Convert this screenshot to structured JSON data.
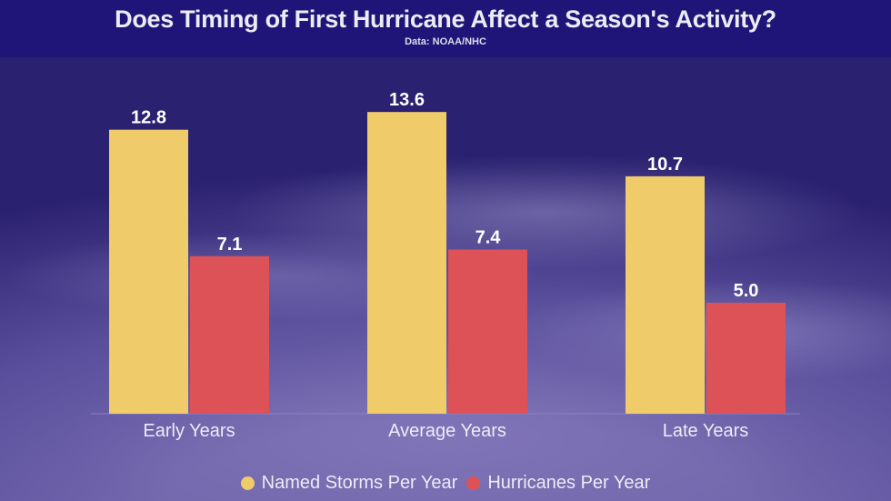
{
  "chart_data": {
    "type": "bar",
    "title": "Does Timing of First Hurricane Affect a Season's Activity?",
    "subtitle": "Data: NOAA/NHC",
    "xlabel": "",
    "ylabel": "",
    "categories": [
      "Early Years",
      "Average Years",
      "Late Years"
    ],
    "series": [
      {
        "name": "Named Storms Per Year",
        "color": "#f0cb6a",
        "values": [
          12.8,
          13.6,
          10.7
        ],
        "labels": [
          "12.8",
          "13.6",
          "10.7"
        ]
      },
      {
        "name": "Hurricanes Per Year",
        "color": "#dd5257",
        "values": [
          7.1,
          7.4,
          5.0
        ],
        "labels": [
          "7.1",
          "7.4",
          "5.0"
        ]
      }
    ],
    "ylim": [
      0,
      14
    ],
    "grid": false,
    "legend_position": "bottom"
  }
}
